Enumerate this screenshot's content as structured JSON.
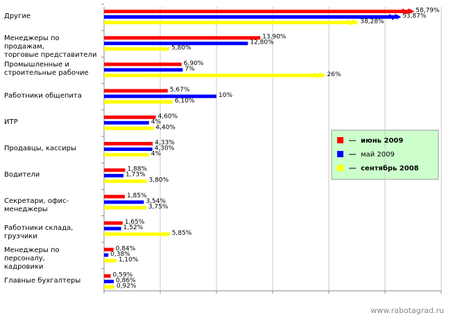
{
  "chart_data": {
    "type": "bar",
    "orientation": "horizontal",
    "categories": [
      "Другие",
      "Менеджеры по продажам,\nторговые представители",
      "Промышленные и\nстроительные рабочие",
      "Работники общепита",
      "ИТР",
      "Продавцы, кассиры",
      "Водители",
      "Секретари, офис-менеджеры",
      "Работники склада, грузчики",
      "Менеджеры по персоналу,\nкадровики",
      "Главные бухгалтеры"
    ],
    "series": [
      {
        "name": "июнь 2009",
        "color": "#ff0000",
        "values": [
          58.79,
          13.9,
          6.9,
          5.67,
          4.6,
          4.33,
          1.88,
          1.85,
          1.65,
          0.84,
          0.59
        ],
        "value_labels": [
          "58,79%",
          "13,90%",
          "6,90%",
          "5,67%",
          "4,60%",
          "4,33%",
          "1,88%",
          "1,85%",
          "1,65%",
          "0,84%",
          "0,59%"
        ]
      },
      {
        "name": "май 2009",
        "color": "#0000ff",
        "values": [
          53.87,
          12.8,
          7,
          10,
          4,
          4.3,
          1.73,
          3.54,
          1.52,
          0.38,
          0.86
        ],
        "value_labels": [
          "53,87%",
          "12,80%",
          "7%",
          "10%",
          "4%",
          "4,30%",
          "1,73%",
          "3,54%",
          "1,52%",
          "0,38%",
          "0,86%"
        ]
      },
      {
        "name": "сентябрь 2008",
        "color": "#ffff00",
        "values": [
          38.28,
          5.8,
          26,
          6.1,
          4.4,
          4,
          3.8,
          3.75,
          5.85,
          1.1,
          0.92
        ],
        "value_labels": [
          "38,28%",
          "5,80%",
          "26%",
          "6,10%",
          "4,40%",
          "4%",
          "3,80%",
          "3,75%",
          "5,85%",
          "1,10%",
          "0,92%"
        ]
      }
    ],
    "xlim": [
      0,
      30
    ],
    "xticks": [
      0,
      5,
      10,
      15,
      20,
      25,
      30
    ],
    "grid": true,
    "legend": "right",
    "watermark": "www.rabotagrad.ru"
  }
}
